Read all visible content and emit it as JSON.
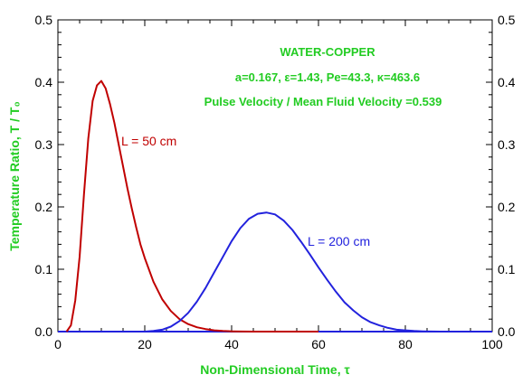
{
  "chart_data": {
    "type": "line",
    "xlabel": "Non-Dimensional Time, τ",
    "ylabel": "Temperature Ratio, T / T₀",
    "xlim": [
      0,
      100
    ],
    "ylim": [
      0,
      0.5
    ],
    "x_ticks": [
      "0",
      "20",
      "40",
      "60",
      "80",
      "100"
    ],
    "y_ticks": [
      "0.0",
      "0.1",
      "0.2",
      "0.3",
      "0.4",
      "0.5"
    ],
    "y_ticks_right": [
      "0.0",
      "0.1",
      "0.2",
      "0.3",
      "0.4",
      "0.5"
    ],
    "annotations": [
      "WATER-COPPER",
      "a=0.167, ε=1.43, Pe=43.3, κ=463.6",
      "Pulse Velocity / Mean Fluid Velocity =0.539"
    ],
    "series": [
      {
        "name": "L = 50 cm",
        "x": [
          2,
          3,
          4,
          5,
          6,
          7,
          8,
          9,
          10,
          11,
          12,
          13,
          14,
          15,
          16,
          17,
          18,
          19,
          20,
          22,
          24,
          26,
          28,
          30,
          32,
          34,
          36,
          38,
          40,
          42,
          45,
          50,
          60
        ],
        "values": [
          0.0,
          0.01,
          0.05,
          0.12,
          0.22,
          0.31,
          0.37,
          0.395,
          0.402,
          0.39,
          0.365,
          0.335,
          0.3,
          0.265,
          0.23,
          0.198,
          0.168,
          0.14,
          0.118,
          0.08,
          0.052,
          0.033,
          0.02,
          0.012,
          0.007,
          0.004,
          0.002,
          0.001,
          0.0005,
          0.0002,
          0.0,
          0.0,
          0.0
        ]
      },
      {
        "name": "L = 200 cm",
        "x": [
          20,
          22,
          24,
          26,
          28,
          30,
          32,
          34,
          36,
          38,
          40,
          42,
          44,
          46,
          48,
          50,
          52,
          54,
          56,
          58,
          60,
          62,
          64,
          66,
          68,
          70,
          72,
          74,
          76,
          78,
          80,
          82,
          84,
          86,
          88
        ],
        "values": [
          0.0,
          0.001,
          0.003,
          0.008,
          0.017,
          0.03,
          0.048,
          0.07,
          0.095,
          0.12,
          0.145,
          0.166,
          0.181,
          0.189,
          0.191,
          0.188,
          0.178,
          0.163,
          0.144,
          0.124,
          0.103,
          0.083,
          0.064,
          0.047,
          0.034,
          0.023,
          0.015,
          0.01,
          0.006,
          0.003,
          0.002,
          0.001,
          0.0005,
          0.0002,
          0.0
        ]
      }
    ]
  },
  "colors": {
    "axis": "#000000",
    "title_green": "#22cc22",
    "series_50": "#c00000",
    "series_200": "#2222dd",
    "baseline": "#2222dd"
  }
}
